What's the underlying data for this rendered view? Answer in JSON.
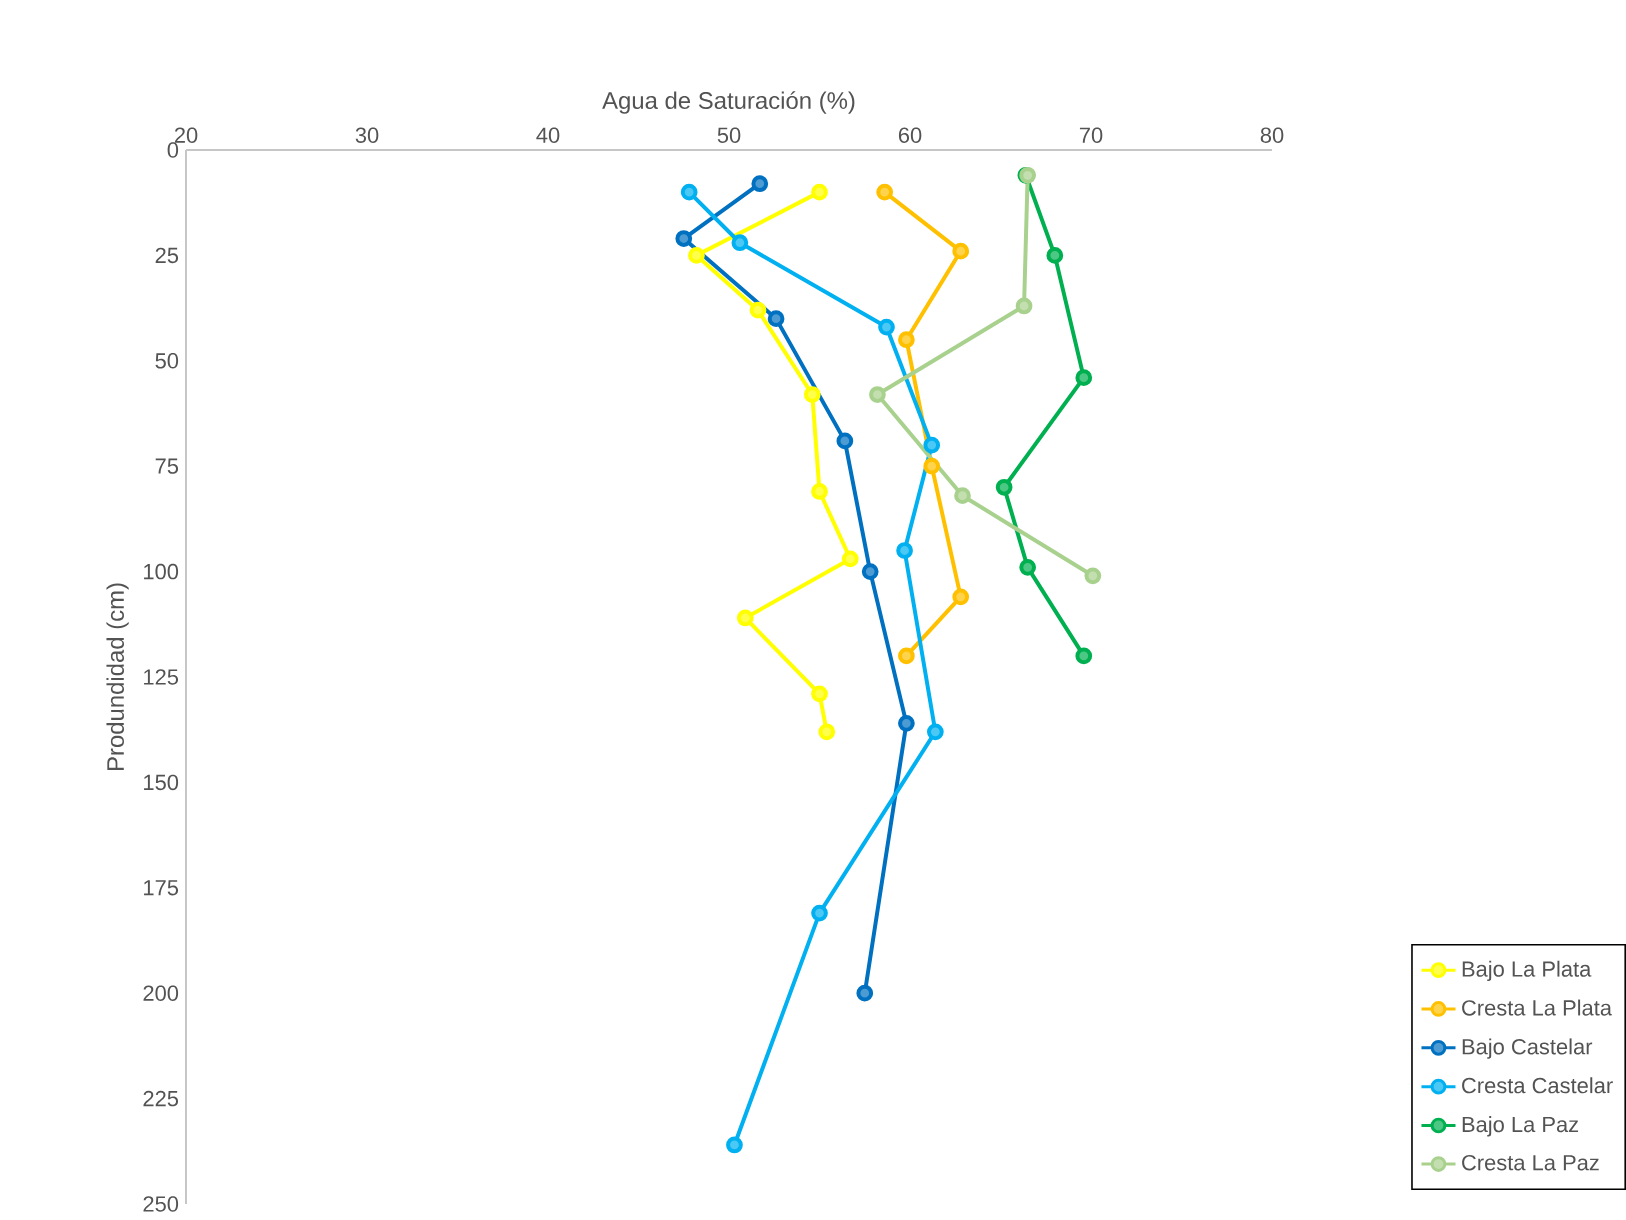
{
  "chart_data": {
    "type": "line",
    "xlabel": "Agua de Saturación (%)",
    "ylabel": "Produndidad (cm)",
    "xlim": [
      20,
      80
    ],
    "xticks": [
      20,
      30,
      40,
      50,
      60,
      70,
      80
    ],
    "ylim": [
      250,
      0
    ],
    "yticks": [
      0,
      25,
      50,
      75,
      100,
      125,
      150,
      175,
      200,
      225,
      250
    ],
    "grid": false,
    "legend": "bottom right",
    "marker": "circle",
    "line_style": "solid",
    "series": [
      {
        "name": "Bajo La Plata",
        "color": "#ffff00",
        "x": [
          55.0,
          48.2,
          51.6,
          54.6,
          55.0,
          56.7,
          50.9,
          55.0,
          55.4
        ],
        "values": [
          10,
          25,
          38,
          58,
          81,
          97,
          111,
          129,
          138
        ]
      },
      {
        "name": "Cresta La Plata",
        "color": "#ffc000",
        "x": [
          58.6,
          62.8,
          59.8,
          61.2,
          62.8,
          59.8
        ],
        "values": [
          10,
          24,
          45,
          75,
          106,
          120
        ]
      },
      {
        "name": "Bajo Castelar",
        "color": "#0070c0",
        "x": [
          51.7,
          47.5,
          52.6,
          56.4,
          57.8,
          59.8,
          57.5
        ],
        "values": [
          8,
          21,
          40,
          69,
          100,
          136,
          200
        ]
      },
      {
        "name": "Cresta Castelar",
        "color": "#00b0f0",
        "x": [
          47.8,
          50.6,
          58.7,
          61.2,
          59.7,
          61.4,
          55.0,
          50.3
        ],
        "values": [
          10,
          22,
          42,
          70,
          95,
          138,
          181,
          236
        ]
      },
      {
        "name": "Bajo La Paz",
        "color": "#00b050",
        "x": [
          66.4,
          68.0,
          69.6,
          65.2,
          66.5,
          69.6
        ],
        "values": [
          6,
          25,
          54,
          80,
          99,
          120
        ]
      },
      {
        "name": "Cresta La Paz",
        "color": "#a9d18e",
        "x": [
          66.5,
          66.3,
          58.2,
          62.9,
          70.1
        ],
        "values": [
          6,
          37,
          58,
          82,
          101
        ]
      }
    ]
  }
}
